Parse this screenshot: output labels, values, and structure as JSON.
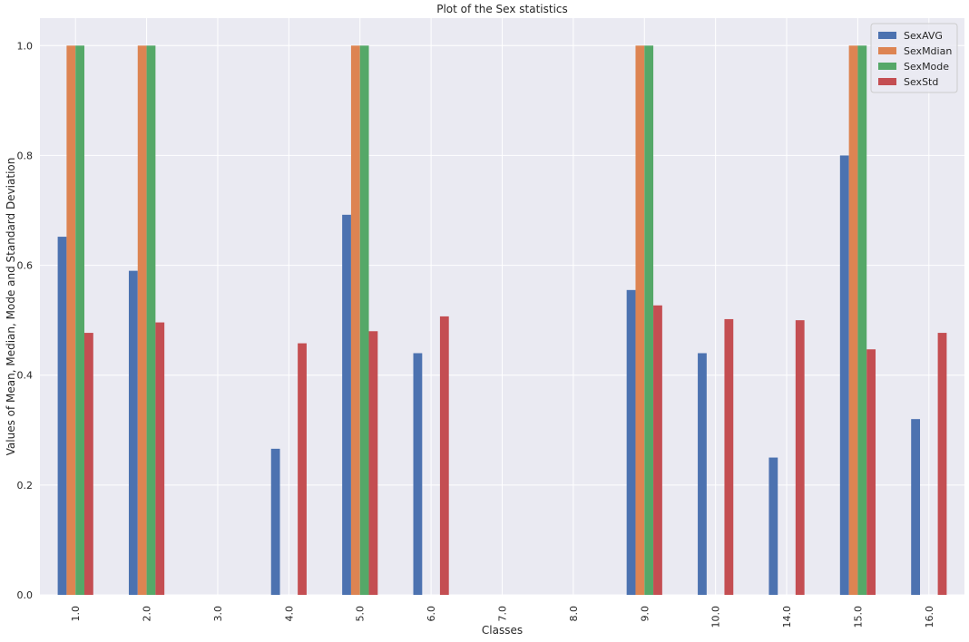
{
  "chart_data": {
    "type": "bar",
    "title": "Plot of the Sex statistics",
    "xlabel": "Classes",
    "ylabel": "Values of Mean, Median, Mode and Standard Deviation",
    "categories": [
      "1.0",
      "2.0",
      "3.0",
      "4.0",
      "5.0",
      "6.0",
      "7.0",
      "8.0",
      "9.0",
      "10.0",
      "14.0",
      "15.0",
      "16.0"
    ],
    "ylim": [
      0,
      1.05
    ],
    "yticks": [
      0.0,
      0.2,
      0.4,
      0.6,
      0.8,
      1.0
    ],
    "ytick_labels": [
      "0.0",
      "0.2",
      "0.4",
      "0.6",
      "0.8",
      "1.0"
    ],
    "grid": true,
    "legend_position": "top-right",
    "background_color": "#eaeaf2",
    "grid_color": "#ffffff",
    "series": [
      {
        "name": "SexAVG",
        "color": "#4c72b0",
        "values": [
          0.652,
          0.59,
          0,
          0.266,
          0.692,
          0.44,
          0,
          0,
          0.555,
          0.44,
          0.25,
          0.8,
          0.32
        ]
      },
      {
        "name": "SexMdian",
        "color": "#dd8452",
        "values": [
          1.0,
          1.0,
          0,
          0,
          1.0,
          0,
          0,
          0,
          1.0,
          0,
          0,
          1.0,
          0
        ]
      },
      {
        "name": "SexMode",
        "color": "#55a868",
        "values": [
          1.0,
          1.0,
          0,
          0,
          1.0,
          0,
          0,
          0,
          1.0,
          0,
          0,
          1.0,
          0
        ]
      },
      {
        "name": "SexStd",
        "color": "#c44e52",
        "values": [
          0.477,
          0.496,
          0,
          0.458,
          0.48,
          0.507,
          0,
          0,
          0.527,
          0.502,
          0.5,
          0.447,
          0.477
        ]
      }
    ]
  }
}
